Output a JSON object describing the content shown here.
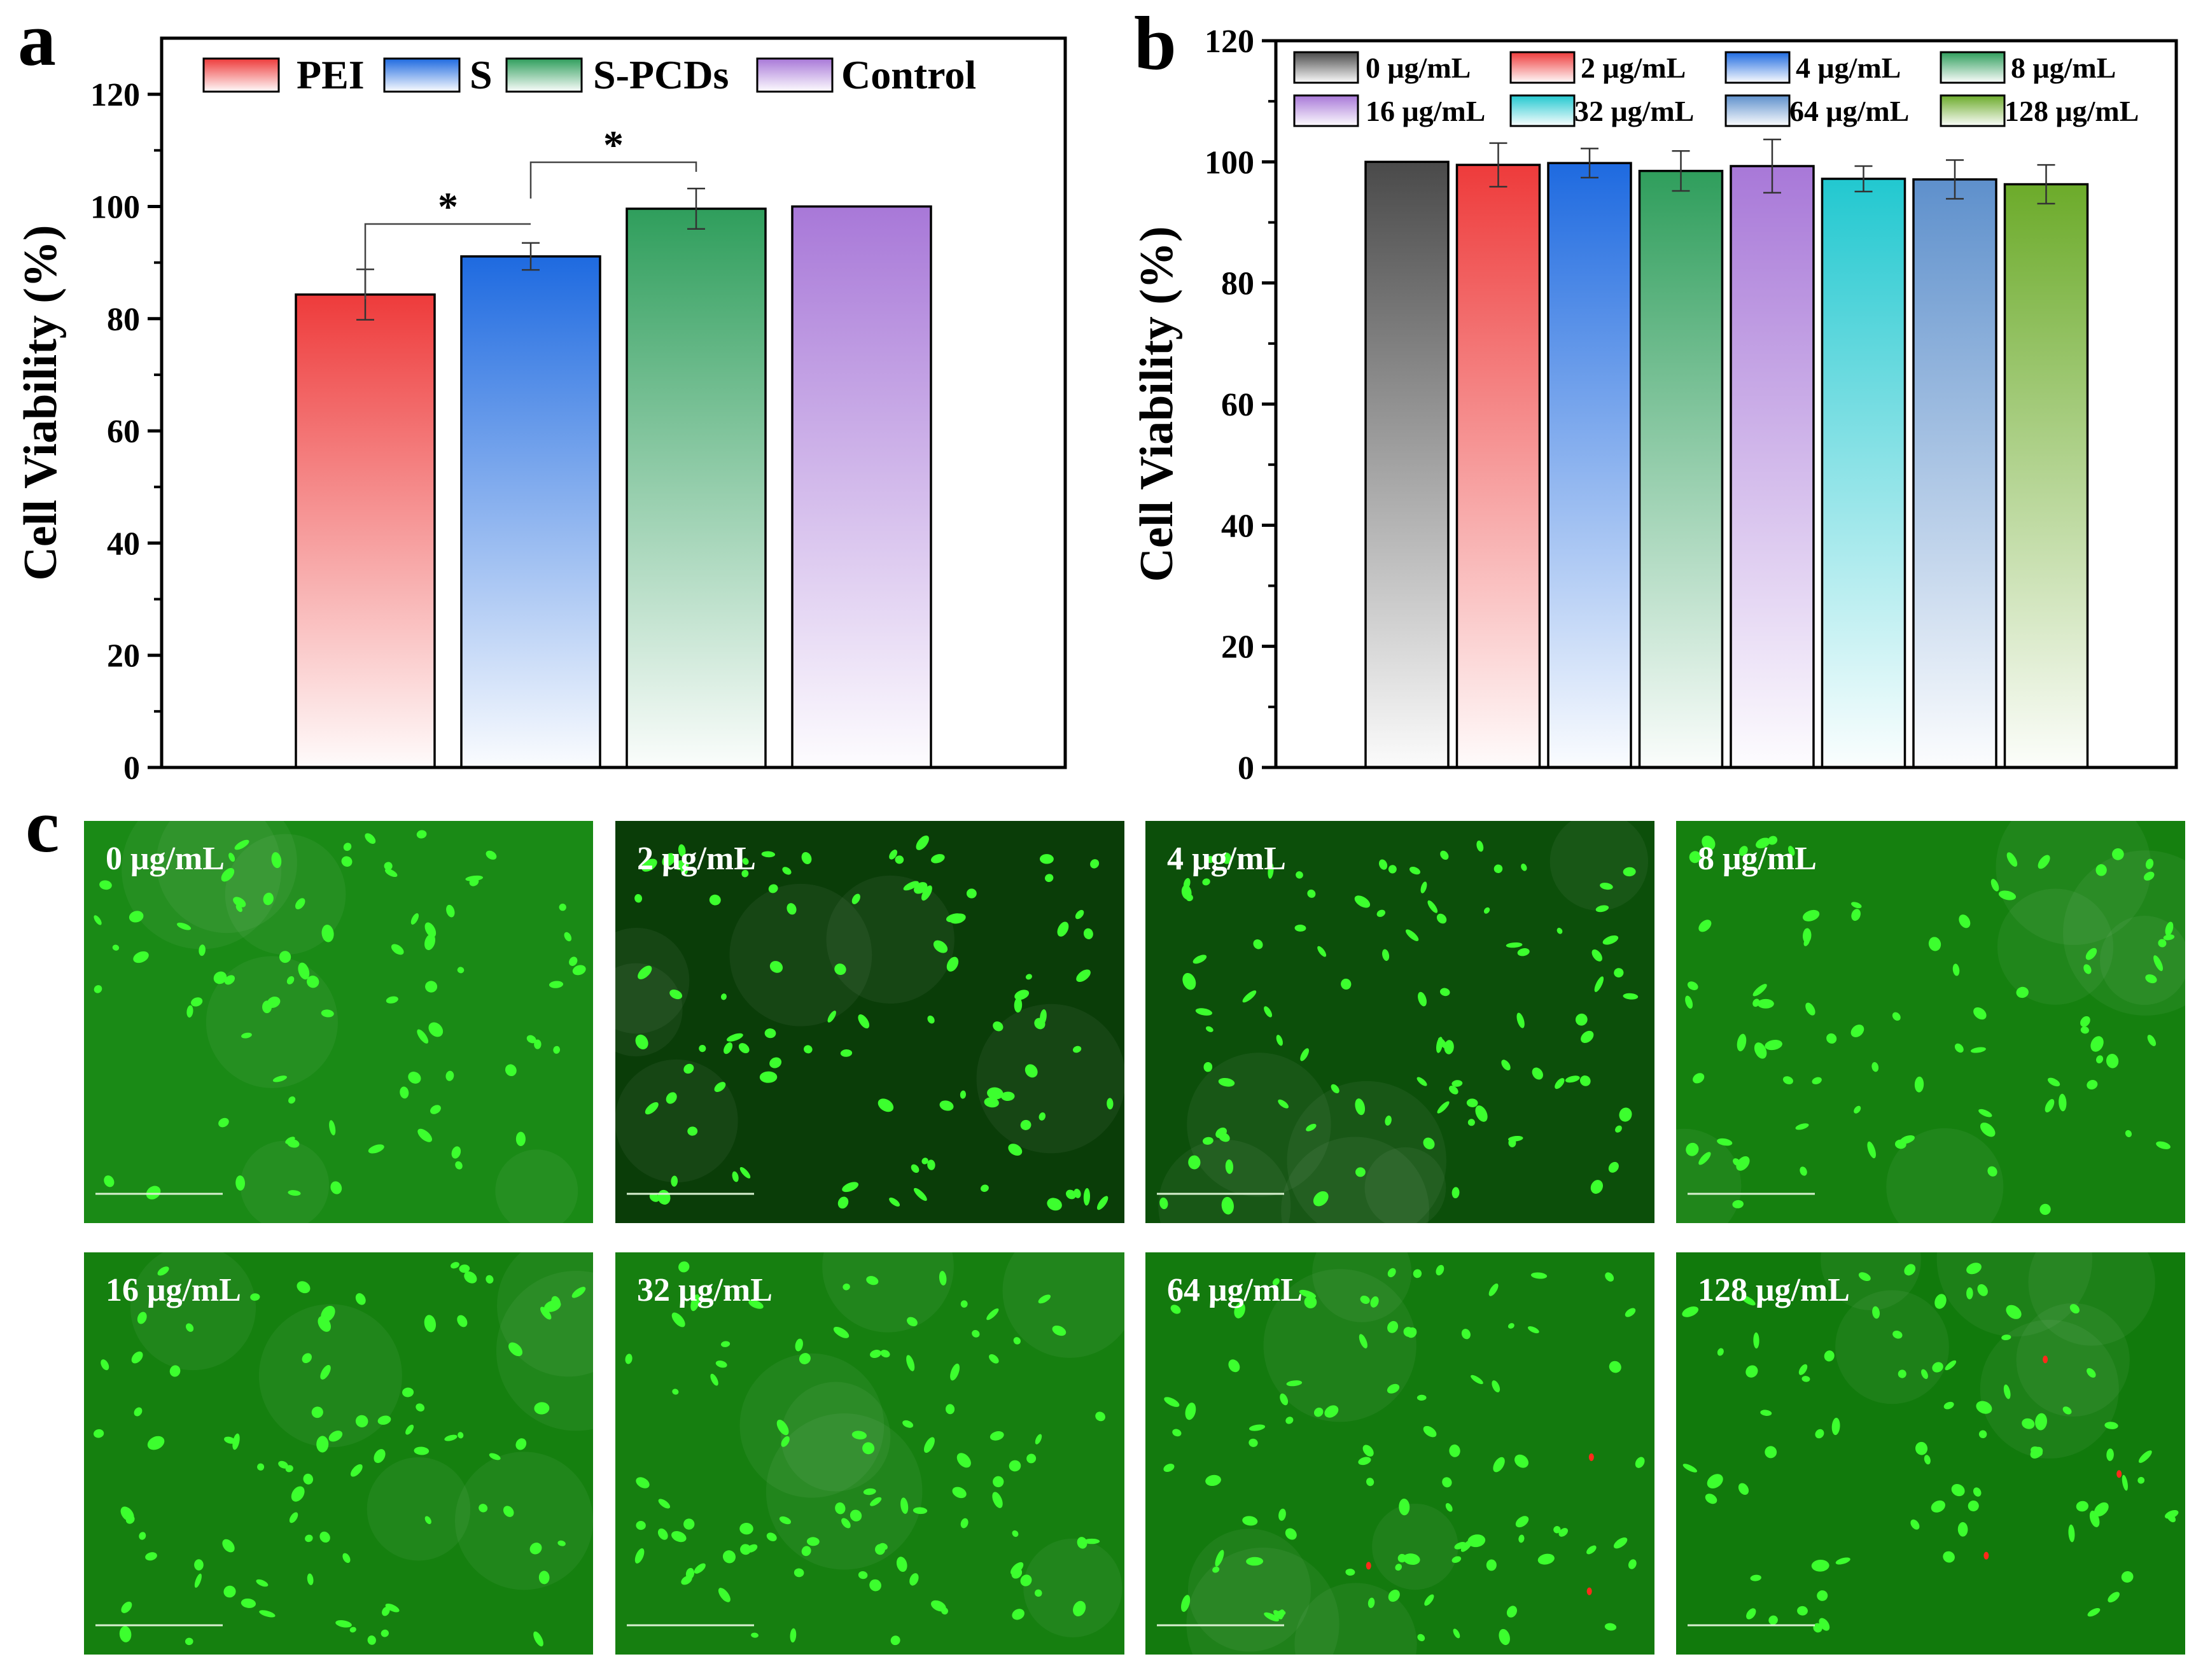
{
  "chart_data": [
    {
      "panel": "a",
      "type": "bar",
      "title": "",
      "xlabel": "",
      "ylabel": "Cell Viability (%)",
      "ylim": [
        0,
        130
      ],
      "yticks": [
        0,
        20,
        40,
        60,
        80,
        100,
        120
      ],
      "categories": [
        "PEI",
        "S",
        "S-PCDs",
        "Control"
      ],
      "values": [
        84.3,
        91.1,
        99.6,
        100.0
      ],
      "errors": [
        4.5,
        2.4,
        3.6,
        0
      ],
      "colors": [
        "#ee3b3b",
        "#1e6ae0",
        "#2f9e5c",
        "#a878d8"
      ],
      "legend": [
        "PEI",
        "S",
        "S-PCDs",
        "Control"
      ],
      "legend_position": "top",
      "significance": [
        {
          "from": 0,
          "to": 1,
          "label": "*"
        },
        {
          "from": 1,
          "to": 2,
          "label": "*"
        }
      ]
    },
    {
      "panel": "b",
      "type": "bar",
      "title": "",
      "xlabel": "",
      "ylabel": "Cell Viability (%)",
      "ylim": [
        0,
        120
      ],
      "yticks": [
        0,
        20,
        40,
        60,
        80,
        100,
        120
      ],
      "categories": [
        "0 μg/mL",
        "2 μg/mL",
        "4 μg/mL",
        "8 μg/mL",
        "16 μg/mL",
        "32 μg/mL",
        "64 μg/mL",
        "128 μg/mL"
      ],
      "values": [
        100.0,
        99.5,
        99.8,
        98.5,
        99.3,
        97.2,
        97.1,
        96.3
      ],
      "errors": [
        0,
        3.6,
        2.4,
        3.3,
        4.4,
        2.1,
        3.2,
        3.2
      ],
      "colors": [
        "#4a4a4a",
        "#ee3b3b",
        "#1e6ae0",
        "#2f9e5c",
        "#a878d8",
        "#22c8d0",
        "#5e90cc",
        "#6cab2a"
      ],
      "legend": [
        "0 μg/mL",
        "2 μg/mL",
        "4 μg/mL",
        "8 μg/mL",
        "16 μg/mL",
        "32 μg/mL",
        "64 μg/mL",
        "128 μg/mL"
      ],
      "legend_position": "top"
    }
  ],
  "panels": {
    "a": "a",
    "b": "b",
    "c": "c"
  },
  "micrographs": {
    "labels": [
      "0 μg/mL",
      "2 μg/mL",
      "4 μg/mL",
      "8 μg/mL",
      "16 μg/mL",
      "32 μg/mL",
      "64 μg/mL",
      "128 μg/mL"
    ],
    "background_colors": [
      "#1a8a16",
      "#0a3d08",
      "#0c4f0a",
      "#15800f",
      "#15800f",
      "#167f10",
      "#137a0e",
      "#117a0c"
    ],
    "live_cell_color": "#3cff2e",
    "dead_cell_color": "#ff2a1a"
  }
}
